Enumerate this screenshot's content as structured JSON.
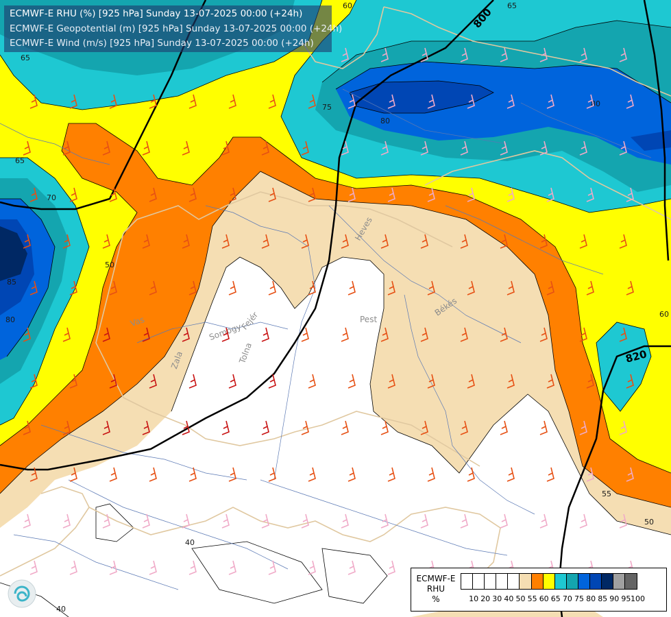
{
  "header": {
    "line1": "ECMWF-E RHU (%) [925 hPa] Sunday 13-07-2025 00:00 (+24h)",
    "line2": "ECMWF-E Geopotential (m) [925 hPa] Sunday 13-07-2025 00:00 (+24h)",
    "line3": "ECMWF-E Wind (m/s) [925 hPa] Sunday 13-07-2025 00:00 (+24h)"
  },
  "legend": {
    "line1": "ECMWF-E",
    "line2": "RHU",
    "line3": "%",
    "colors": [
      "#ffffff",
      "#ffffff",
      "#ffffff",
      "#ffffff",
      "#ffffff",
      "#f5deb3",
      "#ff8000",
      "#ffff00",
      "#1ec8d2",
      "#14a5af",
      "#0064dc",
      "#0046b4",
      "#002864",
      "#a0a0a0",
      "#646464"
    ],
    "ticks": [
      "10",
      "20",
      "30",
      "40",
      "50",
      "55",
      "60",
      "65",
      "70",
      "75",
      "80",
      "85",
      "90",
      "95",
      "100"
    ]
  },
  "map": {
    "geopotential_labels": [
      "800",
      "820"
    ],
    "rhu_labels": [
      "60",
      "65",
      "65",
      "65",
      "75",
      "80",
      "80",
      "70",
      "50",
      "85",
      "80",
      "55",
      "50",
      "40",
      "40",
      "60"
    ],
    "region_labels": [
      "Heves",
      "Pest",
      "Békés",
      "Vas",
      "Somogy",
      "Fejér",
      "Tolna",
      "Zala"
    ],
    "colors": {
      "white": "#ffffff",
      "tan": "#f5deb3",
      "orange": "#ff8000",
      "yellow": "#ffff00",
      "cyan": "#1ec8d2",
      "teal": "#14a5af",
      "blue": "#0064dc",
      "darkblue": "#0046b4",
      "navy": "#002864",
      "barb": "#e65014",
      "barb_dark": "#c81414",
      "barb_light": "#f0aac8",
      "border": "#e0c8a0",
      "river": "#5a78b4"
    }
  }
}
